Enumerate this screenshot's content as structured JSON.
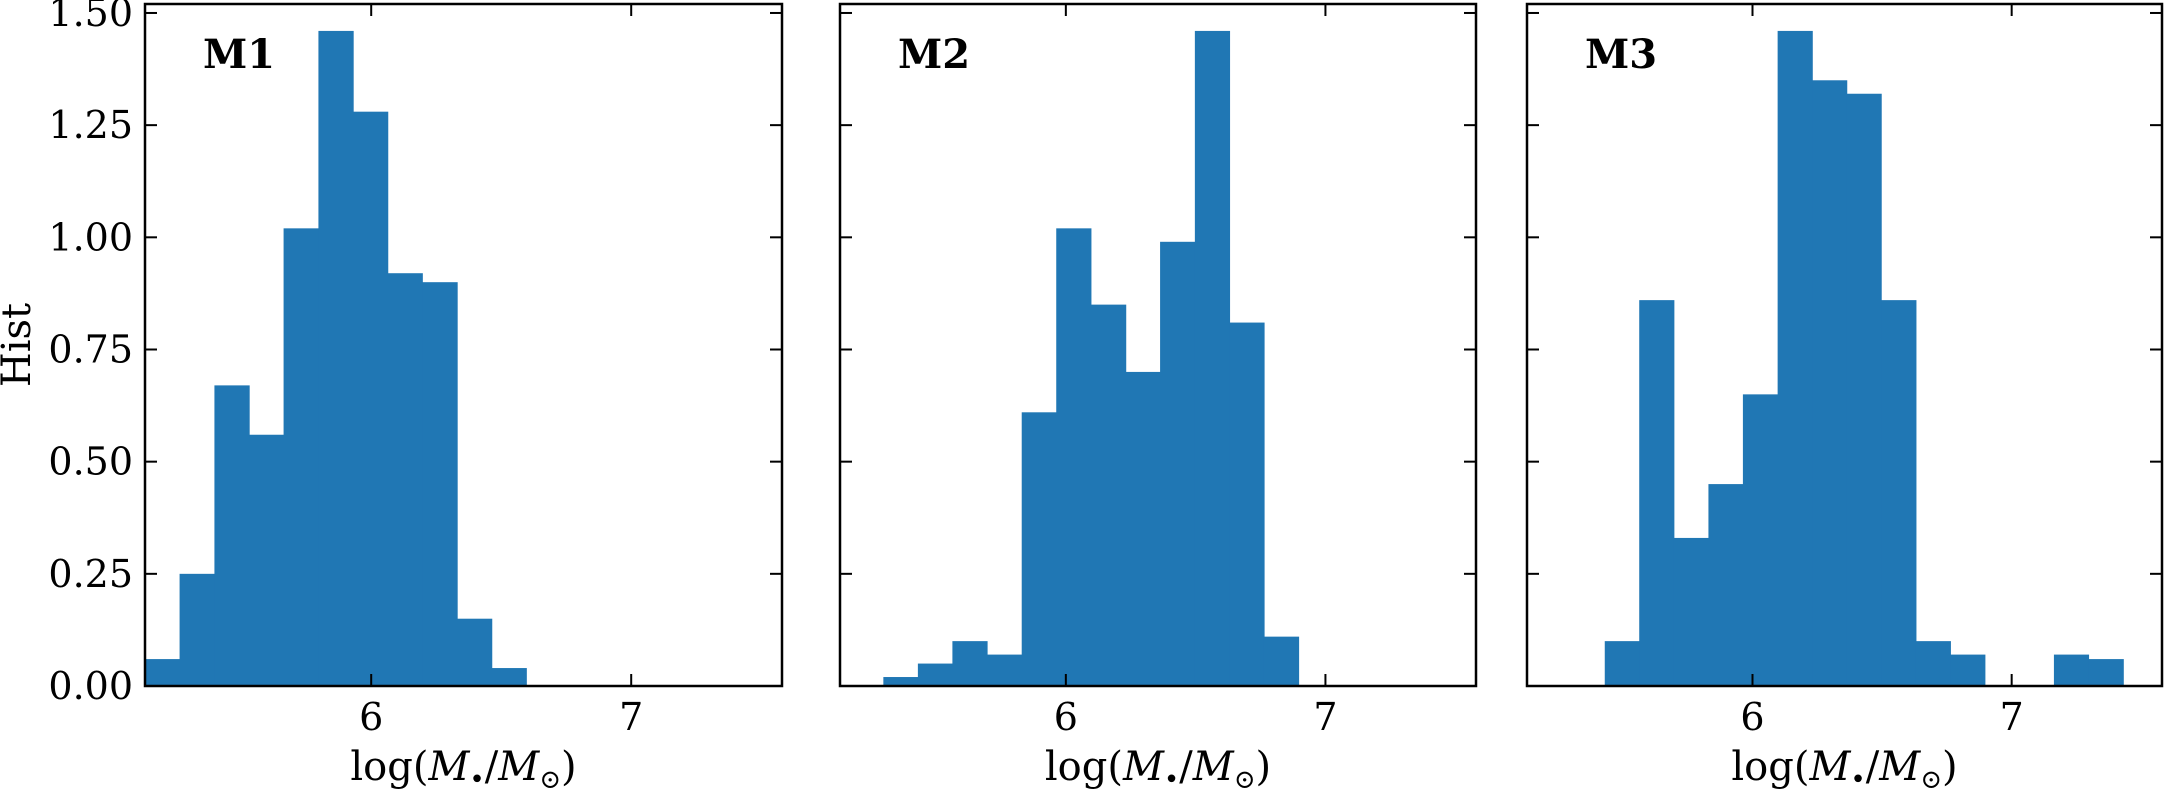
{
  "chart_data": [
    {
      "type": "bar",
      "panel_label": "M1",
      "xlabel": "log(M•/M⊙)",
      "ylabel": "Hist",
      "xlim": [
        5.13,
        7.58
      ],
      "ylim": [
        0,
        1.52
      ],
      "bin_width": 0.1333,
      "xticks": [
        6,
        7
      ],
      "xtick_labels": [
        "6",
        "7"
      ],
      "yticks": [
        0,
        0.25,
        0.5,
        0.75,
        1.0,
        1.25,
        1.5
      ],
      "ytick_labels": [
        "0.00",
        "0.25",
        "0.50",
        "0.75",
        "1.00",
        "1.25",
        "1.50"
      ],
      "color": "#2077b4",
      "bins": [
        {
          "x": 5.13,
          "value": 0.06
        },
        {
          "x": 5.263,
          "value": 0.25
        },
        {
          "x": 5.397,
          "value": 0.67
        },
        {
          "x": 5.53,
          "value": 0.56
        },
        {
          "x": 5.663,
          "value": 1.02
        },
        {
          "x": 5.797,
          "value": 1.46
        },
        {
          "x": 5.93,
          "value": 1.28
        },
        {
          "x": 6.063,
          "value": 0.92
        },
        {
          "x": 6.197,
          "value": 0.9
        },
        {
          "x": 6.33,
          "value": 0.15
        },
        {
          "x": 6.463,
          "value": 0.04
        }
      ]
    },
    {
      "type": "bar",
      "panel_label": "M2",
      "xlabel": "log(M•/M⊙)",
      "ylabel": "",
      "xlim": [
        5.13,
        7.58
      ],
      "ylim": [
        0,
        1.52
      ],
      "bin_width": 0.1333,
      "xticks": [
        6,
        7
      ],
      "xtick_labels": [
        "6",
        "7"
      ],
      "yticks": [
        0,
        0.25,
        0.5,
        0.75,
        1.0,
        1.25,
        1.5
      ],
      "ytick_labels": [],
      "color": "#2077b4",
      "bins": [
        {
          "x": 5.297,
          "value": 0.02
        },
        {
          "x": 5.43,
          "value": 0.05
        },
        {
          "x": 5.563,
          "value": 0.1
        },
        {
          "x": 5.697,
          "value": 0.07
        },
        {
          "x": 5.83,
          "value": 0.61
        },
        {
          "x": 5.963,
          "value": 1.02
        },
        {
          "x": 6.097,
          "value": 0.85
        },
        {
          "x": 6.23,
          "value": 0.7
        },
        {
          "x": 6.363,
          "value": 0.99
        },
        {
          "x": 6.497,
          "value": 1.46
        },
        {
          "x": 6.63,
          "value": 0.81
        },
        {
          "x": 6.763,
          "value": 0.11
        }
      ]
    },
    {
      "type": "bar",
      "panel_label": "M3",
      "xlabel": "log(M•/M⊙)",
      "ylabel": "",
      "xlim": [
        5.13,
        7.58
      ],
      "ylim": [
        0,
        1.52
      ],
      "bin_width": 0.1333,
      "xticks": [
        6,
        7
      ],
      "xtick_labels": [
        "6",
        "7"
      ],
      "yticks": [
        0,
        0.25,
        0.5,
        0.75,
        1.0,
        1.25,
        1.5
      ],
      "ytick_labels": [],
      "color": "#2077b4",
      "bins": [
        {
          "x": 5.43,
          "value": 0.1
        },
        {
          "x": 5.563,
          "value": 0.86
        },
        {
          "x": 5.697,
          "value": 0.33
        },
        {
          "x": 5.83,
          "value": 0.45
        },
        {
          "x": 5.963,
          "value": 0.65
        },
        {
          "x": 6.097,
          "value": 1.46
        },
        {
          "x": 6.23,
          "value": 1.35
        },
        {
          "x": 6.363,
          "value": 1.32
        },
        {
          "x": 6.497,
          "value": 0.86
        },
        {
          "x": 6.63,
          "value": 0.1
        },
        {
          "x": 6.763,
          "value": 0.07
        },
        {
          "x": 7.163,
          "value": 0.07
        },
        {
          "x": 7.297,
          "value": 0.06
        }
      ]
    }
  ]
}
